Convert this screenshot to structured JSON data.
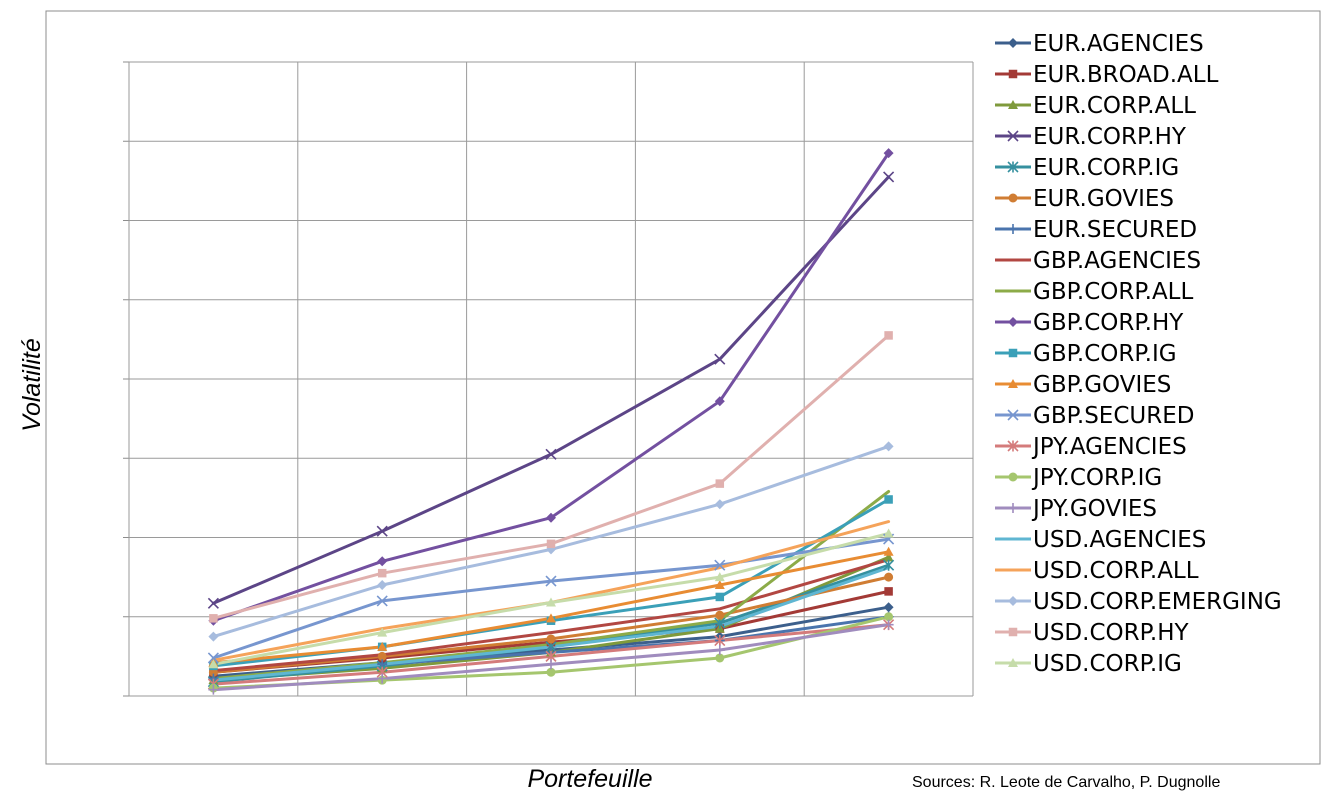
{
  "chart_data": {
    "type": "line",
    "xlabel": "Portefeuille",
    "ylabel": "Volatilité",
    "source": "Sources: R. Leote de Carvalho, P. Dugnolle",
    "x": [
      1,
      2,
      3,
      4,
      5
    ],
    "ylim": [
      0,
      8
    ],
    "grid": true,
    "legend_position": "right",
    "series": [
      {
        "name": "EUR.AGENCIES",
        "color": "#3c5f8c",
        "marker": "diamond",
        "values": [
          0.25,
          0.42,
          0.58,
          0.75,
          1.12
        ]
      },
      {
        "name": "EUR.BROAD.ALL",
        "color": "#a33a36",
        "marker": "square",
        "values": [
          0.3,
          0.48,
          0.68,
          0.85,
          1.32
        ]
      },
      {
        "name": "EUR.CORP.ALL",
        "color": "#7f9a3c",
        "marker": "triangle",
        "values": [
          0.2,
          0.35,
          0.55,
          0.85,
          1.75
        ]
      },
      {
        "name": "EUR.CORP.HY",
        "color": "#5c4587",
        "marker": "x",
        "values": [
          1.17,
          2.08,
          3.05,
          4.25,
          6.55
        ]
      },
      {
        "name": "EUR.CORP.IG",
        "color": "#35909f",
        "marker": "star",
        "values": [
          0.18,
          0.38,
          0.62,
          0.92,
          1.65
        ]
      },
      {
        "name": "EUR.GOVIES",
        "color": "#d07d33",
        "marker": "circle",
        "values": [
          0.3,
          0.5,
          0.72,
          1.02,
          1.5
        ]
      },
      {
        "name": "EUR.SECURED",
        "color": "#4a74ad",
        "marker": "plus",
        "values": [
          0.22,
          0.4,
          0.55,
          0.7,
          1.0
        ]
      },
      {
        "name": "GBP.AGENCIES",
        "color": "#b24742",
        "marker": "none",
        "values": [
          0.32,
          0.52,
          0.8,
          1.1,
          1.72
        ]
      },
      {
        "name": "GBP.CORP.ALL",
        "color": "#8cab48",
        "marker": "none",
        "values": [
          0.22,
          0.42,
          0.65,
          0.95,
          2.58
        ]
      },
      {
        "name": "GBP.CORP.HY",
        "color": "#7350a0",
        "marker": "diamond",
        "values": [
          0.95,
          1.7,
          2.25,
          3.72,
          6.85
        ]
      },
      {
        "name": "GBP.CORP.IG",
        "color": "#3ba0b8",
        "marker": "square",
        "values": [
          0.38,
          0.62,
          0.95,
          1.25,
          2.48
        ]
      },
      {
        "name": "GBP.GOVIES",
        "color": "#e88c33",
        "marker": "triangle",
        "values": [
          0.42,
          0.62,
          0.98,
          1.4,
          1.82
        ]
      },
      {
        "name": "GBP.SECURED",
        "color": "#7796cf",
        "marker": "x",
        "values": [
          0.48,
          1.2,
          1.45,
          1.65,
          1.98
        ]
      },
      {
        "name": "JPY.AGENCIES",
        "color": "#d47b7b",
        "marker": "star",
        "values": [
          0.15,
          0.3,
          0.5,
          0.7,
          0.9
        ]
      },
      {
        "name": "JPY.CORP.IG",
        "color": "#a5c66e",
        "marker": "circle",
        "values": [
          0.1,
          0.2,
          0.3,
          0.48,
          1.0
        ]
      },
      {
        "name": "JPY.GOVIES",
        "color": "#a08cbe",
        "marker": "plus",
        "values": [
          0.08,
          0.22,
          0.4,
          0.58,
          0.9
        ]
      },
      {
        "name": "USD.AGENCIES",
        "color": "#5fb6d2",
        "marker": "none",
        "values": [
          0.2,
          0.4,
          0.62,
          0.88,
          1.62
        ]
      },
      {
        "name": "USD.CORP.ALL",
        "color": "#f5a35a",
        "marker": "none",
        "values": [
          0.45,
          0.85,
          1.18,
          1.62,
          2.2
        ]
      },
      {
        "name": "USD.CORP.EMERGING",
        "color": "#a7bcde",
        "marker": "diamond",
        "values": [
          0.75,
          1.4,
          1.85,
          2.42,
          3.15
        ]
      },
      {
        "name": "USD.CORP.HY",
        "color": "#e0b0ae",
        "marker": "square",
        "values": [
          0.98,
          1.55,
          1.92,
          2.68,
          4.55
        ]
      },
      {
        "name": "USD.CORP.IG",
        "color": "#c6dcaa",
        "marker": "triangle",
        "values": [
          0.4,
          0.8,
          1.18,
          1.5,
          2.05
        ]
      }
    ]
  }
}
